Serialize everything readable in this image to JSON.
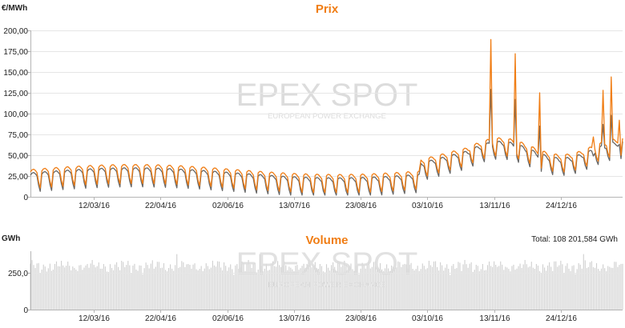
{
  "colors": {
    "orange": "#f07d14",
    "gray": "#666666",
    "bar": "#cfcfcf",
    "grid": "#e6e6e6",
    "axis": "#b5b5b5"
  },
  "watermark": {
    "logo": "EPEX SPOT",
    "tagline": "EUROPEAN POWER EXCHANGE"
  },
  "chart_data": [
    {
      "type": "line",
      "title": "Prix",
      "ylabel": "€/MWh",
      "ylim": [
        0,
        200
      ],
      "yticks": [
        "200,00",
        "175,00",
        "150,00",
        "125,00",
        "100,00",
        "75,00",
        "50,00",
        "25,00",
        "0"
      ],
      "yticks_values": [
        200,
        175,
        150,
        125,
        100,
        75,
        50,
        25,
        0
      ],
      "x_tick_labels": [
        "12/03/16",
        "22/04/16",
        "02/06/16",
        "13/07/16",
        "23/08/16",
        "03/10/16",
        "13/11/16",
        "24/12/16"
      ],
      "x_range": [
        "2016-02-02",
        "2017-01-31"
      ],
      "grid": true,
      "series": [
        {
          "color": "#f07d14",
          "values": []
        },
        {
          "color": "#666666",
          "values": []
        }
      ]
    },
    {
      "type": "bar",
      "title": "Volume",
      "ylabel": "GWh",
      "ylim": [
        0,
        400
      ],
      "yticks": [
        "250,0",
        "0"
      ],
      "yticks_values": [
        250,
        0
      ],
      "x_tick_labels": [
        "12/03/16",
        "22/04/16",
        "02/06/16",
        "13/07/16",
        "23/08/16",
        "03/10/16",
        "13/11/16",
        "24/12/16"
      ],
      "x_range": [
        "2016-02-02",
        "2017-01-31"
      ],
      "grid": true,
      "total_label": "Total: 108 201,584 GWh",
      "values": []
    }
  ]
}
